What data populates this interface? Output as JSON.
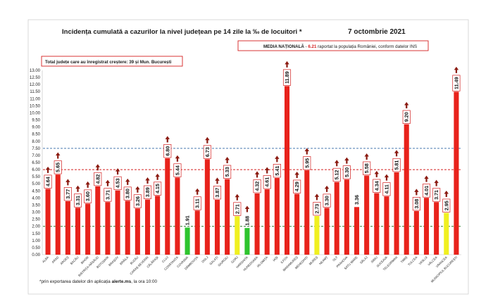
{
  "chart_data": {
    "type": "bar",
    "title": "Incidența cumulată a cazurilor la nivel județean pe 14 zile la ‰ de locuitori *",
    "date": "7 octombrie 2021",
    "national_box": {
      "label": "MEDIA NAȚIONALĂ",
      "dash": " - ",
      "value_text": "6.21",
      "suffix": " raportat la populația României, conform datelor INS"
    },
    "increase_box": "Total județe care au înregistrat creștere:  39 și Mun. București",
    "footnote_prefix": "*prin exportarea datelor din aplicația ",
    "footnote_bold": "alerte.ms",
    "footnote_suffix": ", la ora 10:00",
    "ylim": [
      0,
      13
    ],
    "yticks": [
      "0.00",
      "0.50",
      "1.00",
      "1.50",
      "2.00",
      "2.50",
      "3.00",
      "3.50",
      "4.00",
      "4.50",
      "5.00",
      "5.50",
      "6.00",
      "6.50",
      "7.00",
      "7.50",
      "8.00",
      "8.50",
      "9.00",
      "9.50",
      "10.00",
      "10.50",
      "11.00",
      "11.50",
      "12.00",
      "12.50",
      "13.00"
    ],
    "reference_lines": [
      {
        "value": 7.5,
        "color": "#4a7ab0"
      },
      {
        "value": 6.0,
        "color": "#d42020"
      },
      {
        "value": 2.0,
        "color": "#2a7a2a"
      }
    ],
    "categories": [
      "ALBA",
      "ARAD",
      "ARGEȘ",
      "BACĂU",
      "BIHOR",
      "BISTRIȚA-NĂSĂUD",
      "BOTOȘANI",
      "BRAȘOV",
      "BRĂILA",
      "BUZĂU",
      "CARAȘ-SEVERIN",
      "CĂLĂRAȘI",
      "CLUJ",
      "CONSTANȚA",
      "COVASNA",
      "DÂMBOVIȚA",
      "DOLJ",
      "GALAȚI",
      "GIURGIU",
      "GORJ",
      "HARGHITA",
      "HUNEDOARA",
      "IALOMIȚA",
      "IAȘI",
      "ILFOV",
      "MARAMUREȘ",
      "MEHEDINȚI",
      "MUREȘ",
      "NEAMȚ",
      "OLT",
      "PRAHOVA",
      "SATU MARE",
      "SĂLAJ",
      "SIBIU",
      "SUCEAVA",
      "TELEORMAN",
      "TIMIȘ",
      "TULCEA",
      "VASLUI",
      "VÂLCEA",
      "VRANCEA",
      "MUNICIPIUL BUCUREȘTI"
    ],
    "values": [
      4.64,
      5.65,
      3.77,
      3.31,
      3.6,
      4.82,
      3.71,
      4.53,
      3.8,
      3.26,
      3.89,
      4.15,
      6.8,
      5.44,
      1.91,
      3.11,
      6.73,
      3.87,
      5.33,
      2.71,
      1.88,
      4.32,
      4.61,
      5.41,
      11.89,
      4.29,
      5.95,
      2.73,
      3.3,
      5.12,
      5.3,
      3.36,
      5.58,
      4.34,
      4.11,
      5.81,
      9.2,
      3.08,
      4.01,
      3.71,
      2.95,
      11.49
    ],
    "value_labels": [
      "4.64",
      "5.65",
      "3.77",
      "3.31",
      "3.60",
      "4.82",
      "3.71",
      "4.53",
      "3.80",
      "3.26",
      "3.89",
      "4.15",
      "6.80",
      "5.44",
      "1.91",
      "3.11",
      "6.73",
      "3.87",
      "5.33",
      "2.71",
      "1.88",
      "4.32",
      "4.61",
      "5.41",
      "11.89",
      "4.29",
      "5.95",
      "2.73",
      "3.30",
      "5.12",
      "5.30",
      "3.36",
      "5.58",
      "4.34",
      "4.11",
      "5.81",
      "9.20",
      "3.08",
      "4.01",
      "3.71",
      "2.95",
      "11.49"
    ],
    "bar_colors": [
      "#e8221b",
      "#e8221b",
      "#e8221b",
      "#e8221b",
      "#e8221b",
      "#e8221b",
      "#e8221b",
      "#e8221b",
      "#e8221b",
      "#e8221b",
      "#e8221b",
      "#e8221b",
      "#e8221b",
      "#e8221b",
      "#2ec42e",
      "#e8221b",
      "#e8221b",
      "#e8221b",
      "#e8221b",
      "#f0f020",
      "#2ec42e",
      "#e8221b",
      "#e8221b",
      "#e8221b",
      "#e8221b",
      "#e8221b",
      "#e8221b",
      "#f0f020",
      "#e8221b",
      "#e8221b",
      "#e8221b",
      "#e8221b",
      "#e8221b",
      "#e8221b",
      "#e8221b",
      "#e8221b",
      "#e8221b",
      "#e8221b",
      "#e8221b",
      "#e8221b",
      "#f0f020",
      "#e8221b"
    ],
    "increase_arrow": [
      true,
      true,
      true,
      true,
      true,
      true,
      true,
      true,
      true,
      true,
      true,
      true,
      true,
      true,
      false,
      true,
      true,
      true,
      true,
      true,
      true,
      true,
      true,
      true,
      true,
      true,
      true,
      true,
      true,
      true,
      true,
      false,
      true,
      true,
      true,
      true,
      true,
      true,
      true,
      true,
      true,
      true
    ],
    "label_boxed": [
      true,
      true,
      true,
      true,
      true,
      true,
      true,
      true,
      true,
      true,
      true,
      true,
      true,
      true,
      false,
      true,
      true,
      true,
      true,
      true,
      false,
      true,
      true,
      true,
      true,
      true,
      true,
      true,
      true,
      true,
      true,
      false,
      true,
      true,
      true,
      true,
      true,
      true,
      true,
      true,
      true,
      true
    ],
    "colors": {
      "accent_red": "#d42020",
      "box_border": "#d42020"
    }
  }
}
